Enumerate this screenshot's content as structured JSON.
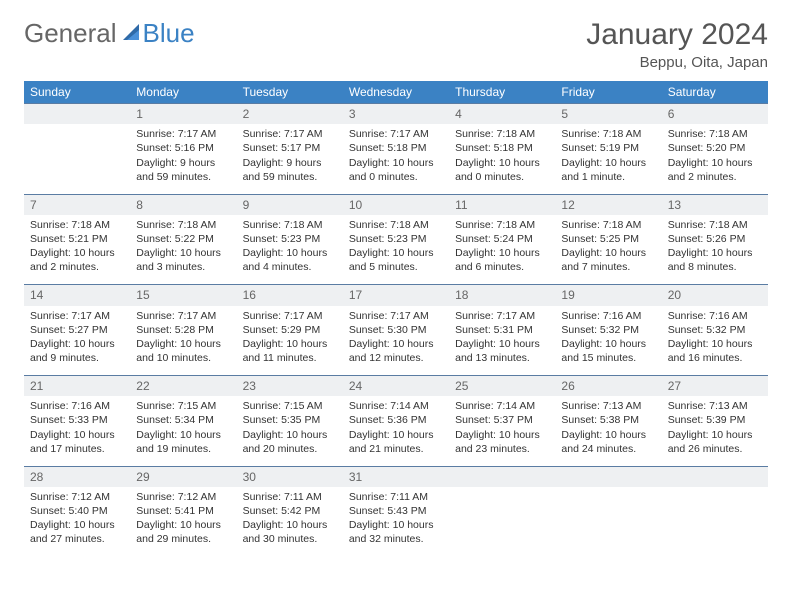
{
  "logo": {
    "text1": "General",
    "text2": "Blue"
  },
  "title": "January 2024",
  "subtitle": "Beppu, Oita, Japan",
  "colors": {
    "header_bg": "#3b82c4",
    "header_fg": "#ffffff",
    "daynum_bg": "#eef0f2",
    "daynum_border": "#5a7ca3",
    "text": "#333333",
    "title": "#555555"
  },
  "weekdays": [
    "Sunday",
    "Monday",
    "Tuesday",
    "Wednesday",
    "Thursday",
    "Friday",
    "Saturday"
  ],
  "weeks": [
    [
      null,
      {
        "n": "1",
        "sr": "7:17 AM",
        "ss": "5:16 PM",
        "d": "9 hours and 59 minutes."
      },
      {
        "n": "2",
        "sr": "7:17 AM",
        "ss": "5:17 PM",
        "d": "9 hours and 59 minutes."
      },
      {
        "n": "3",
        "sr": "7:17 AM",
        "ss": "5:18 PM",
        "d": "10 hours and 0 minutes."
      },
      {
        "n": "4",
        "sr": "7:18 AM",
        "ss": "5:18 PM",
        "d": "10 hours and 0 minutes."
      },
      {
        "n": "5",
        "sr": "7:18 AM",
        "ss": "5:19 PM",
        "d": "10 hours and 1 minute."
      },
      {
        "n": "6",
        "sr": "7:18 AM",
        "ss": "5:20 PM",
        "d": "10 hours and 2 minutes."
      }
    ],
    [
      {
        "n": "7",
        "sr": "7:18 AM",
        "ss": "5:21 PM",
        "d": "10 hours and 2 minutes."
      },
      {
        "n": "8",
        "sr": "7:18 AM",
        "ss": "5:22 PM",
        "d": "10 hours and 3 minutes."
      },
      {
        "n": "9",
        "sr": "7:18 AM",
        "ss": "5:23 PM",
        "d": "10 hours and 4 minutes."
      },
      {
        "n": "10",
        "sr": "7:18 AM",
        "ss": "5:23 PM",
        "d": "10 hours and 5 minutes."
      },
      {
        "n": "11",
        "sr": "7:18 AM",
        "ss": "5:24 PM",
        "d": "10 hours and 6 minutes."
      },
      {
        "n": "12",
        "sr": "7:18 AM",
        "ss": "5:25 PM",
        "d": "10 hours and 7 minutes."
      },
      {
        "n": "13",
        "sr": "7:18 AM",
        "ss": "5:26 PM",
        "d": "10 hours and 8 minutes."
      }
    ],
    [
      {
        "n": "14",
        "sr": "7:17 AM",
        "ss": "5:27 PM",
        "d": "10 hours and 9 minutes."
      },
      {
        "n": "15",
        "sr": "7:17 AM",
        "ss": "5:28 PM",
        "d": "10 hours and 10 minutes."
      },
      {
        "n": "16",
        "sr": "7:17 AM",
        "ss": "5:29 PM",
        "d": "10 hours and 11 minutes."
      },
      {
        "n": "17",
        "sr": "7:17 AM",
        "ss": "5:30 PM",
        "d": "10 hours and 12 minutes."
      },
      {
        "n": "18",
        "sr": "7:17 AM",
        "ss": "5:31 PM",
        "d": "10 hours and 13 minutes."
      },
      {
        "n": "19",
        "sr": "7:16 AM",
        "ss": "5:32 PM",
        "d": "10 hours and 15 minutes."
      },
      {
        "n": "20",
        "sr": "7:16 AM",
        "ss": "5:32 PM",
        "d": "10 hours and 16 minutes."
      }
    ],
    [
      {
        "n": "21",
        "sr": "7:16 AM",
        "ss": "5:33 PM",
        "d": "10 hours and 17 minutes."
      },
      {
        "n": "22",
        "sr": "7:15 AM",
        "ss": "5:34 PM",
        "d": "10 hours and 19 minutes."
      },
      {
        "n": "23",
        "sr": "7:15 AM",
        "ss": "5:35 PM",
        "d": "10 hours and 20 minutes."
      },
      {
        "n": "24",
        "sr": "7:14 AM",
        "ss": "5:36 PM",
        "d": "10 hours and 21 minutes."
      },
      {
        "n": "25",
        "sr": "7:14 AM",
        "ss": "5:37 PM",
        "d": "10 hours and 23 minutes."
      },
      {
        "n": "26",
        "sr": "7:13 AM",
        "ss": "5:38 PM",
        "d": "10 hours and 24 minutes."
      },
      {
        "n": "27",
        "sr": "7:13 AM",
        "ss": "5:39 PM",
        "d": "10 hours and 26 minutes."
      }
    ],
    [
      {
        "n": "28",
        "sr": "7:12 AM",
        "ss": "5:40 PM",
        "d": "10 hours and 27 minutes."
      },
      {
        "n": "29",
        "sr": "7:12 AM",
        "ss": "5:41 PM",
        "d": "10 hours and 29 minutes."
      },
      {
        "n": "30",
        "sr": "7:11 AM",
        "ss": "5:42 PM",
        "d": "10 hours and 30 minutes."
      },
      {
        "n": "31",
        "sr": "7:11 AM",
        "ss": "5:43 PM",
        "d": "10 hours and 32 minutes."
      },
      null,
      null,
      null
    ]
  ]
}
